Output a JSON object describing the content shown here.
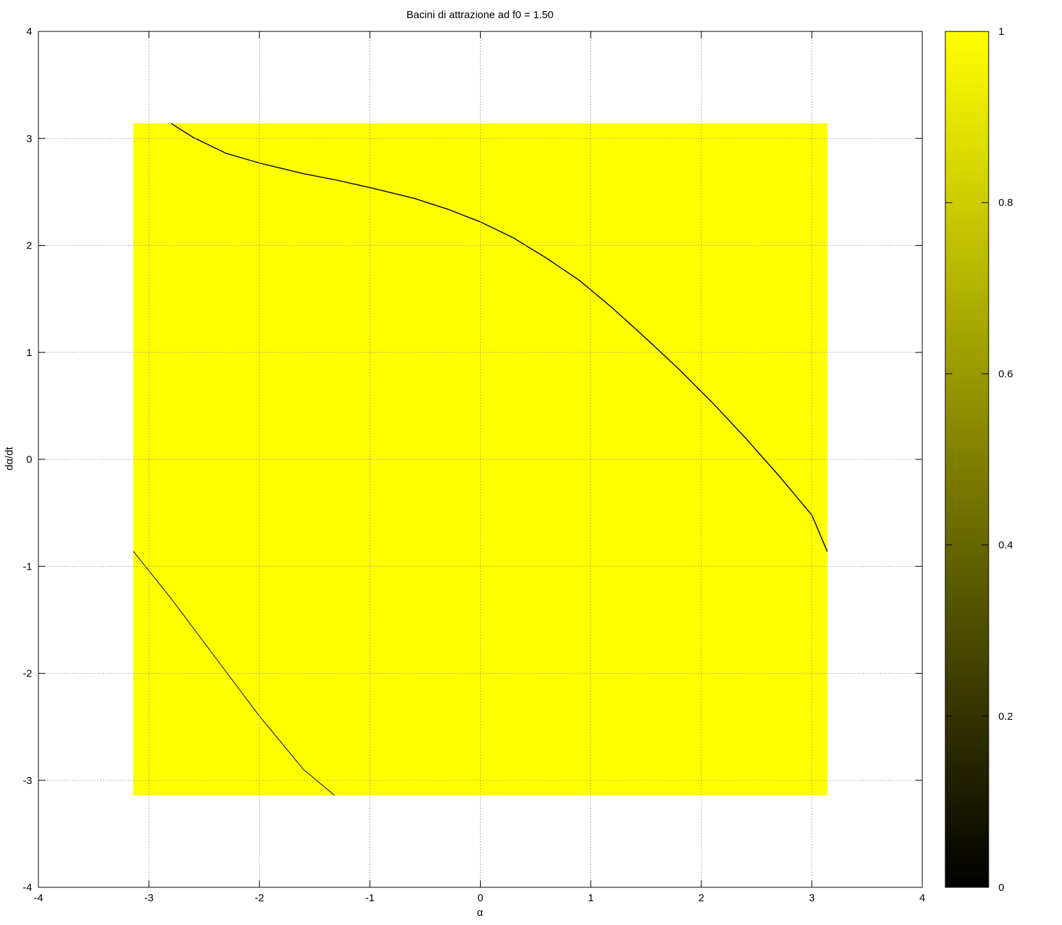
{
  "chart_data": {
    "type": "heatmap",
    "title": "Bacini di attrazione ad f0 = 1.50",
    "xlabel": "α",
    "ylabel": "dα/dt",
    "xlim": [
      -4,
      4
    ],
    "ylim": [
      -4,
      4
    ],
    "x_ticks": [
      "-4",
      "-3",
      "-2",
      "-1",
      "0",
      "1",
      "2",
      "3",
      "4"
    ],
    "y_ticks": [
      "-4",
      "-3",
      "-2",
      "-1",
      "0",
      "1",
      "2",
      "3",
      "4"
    ],
    "grid": true,
    "data_region": {
      "x": [
        -3.1416,
        3.1416
      ],
      "y": [
        -3.1416,
        3.1416
      ]
    },
    "background_value": 1,
    "boundary_value": 0,
    "basin_boundaries": [
      {
        "points": [
          [
            -2.8,
            3.14
          ],
          [
            -2.6,
            3.01
          ],
          [
            -2.3,
            2.86
          ],
          [
            -2.0,
            2.77
          ],
          [
            -1.6,
            2.67
          ],
          [
            -1.3,
            2.61
          ],
          [
            -1.0,
            2.54
          ],
          [
            -0.6,
            2.44
          ],
          [
            -0.3,
            2.34
          ],
          [
            0.0,
            2.22
          ],
          [
            0.3,
            2.07
          ],
          [
            0.6,
            1.88
          ],
          [
            0.9,
            1.67
          ],
          [
            1.2,
            1.41
          ],
          [
            1.5,
            1.13
          ],
          [
            1.8,
            0.84
          ],
          [
            2.1,
            0.53
          ],
          [
            2.4,
            0.2
          ],
          [
            2.7,
            -0.15
          ],
          [
            3.0,
            -0.52
          ],
          [
            3.14,
            -0.86
          ]
        ]
      },
      {
        "points": [
          [
            -3.14,
            -0.86
          ],
          [
            -2.8,
            -1.3
          ],
          [
            -2.4,
            -1.85
          ],
          [
            -2.0,
            -2.4
          ],
          [
            -1.6,
            -2.9
          ],
          [
            -1.32,
            -3.14
          ]
        ]
      }
    ],
    "colorbar": {
      "range": [
        0,
        1
      ],
      "ticks": [
        "0",
        "0.2",
        "0.4",
        "0.6",
        "0.8",
        "1"
      ],
      "color_low": "#000000",
      "color_high": "#ffff00"
    }
  }
}
